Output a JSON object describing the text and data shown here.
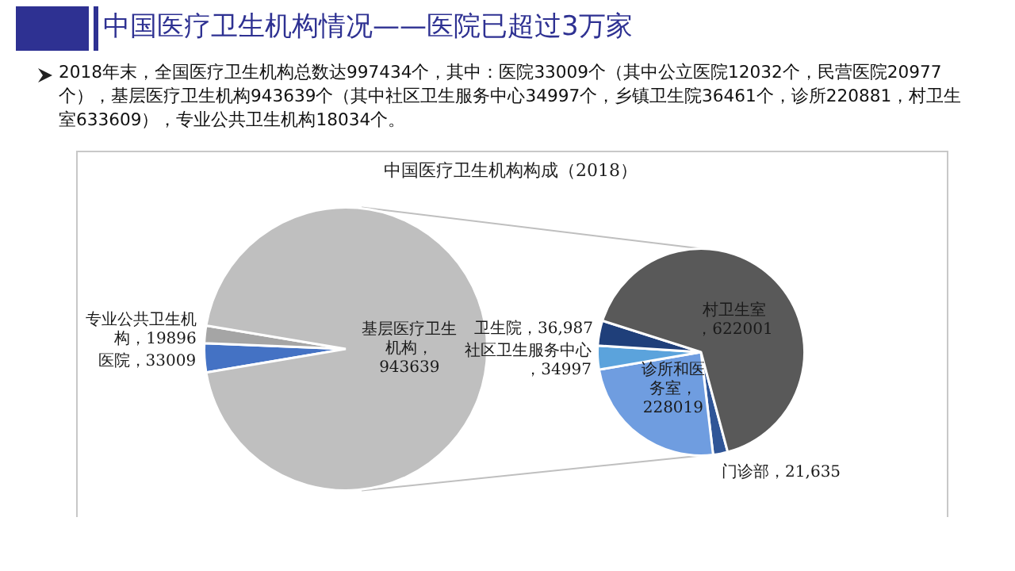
{
  "chart_data": [
    {
      "type": "pie",
      "title": "中国医疗卫生机构情况——医院已超过3万家",
      "subtitle": "中国医疗卫生机构构成（2018）",
      "annotations": [
        "2018年末，全国医疗卫生机构总数达997434个，其中：医院33009个（其中公立医院12032个，民营医院20977个），基层医疗卫生机构943639个（其中社区卫生服务中心34997个，乡镇卫生院36461个，诊所220881，村卫生室633609），专业公共卫生机构18034个。"
      ],
      "categories": [
        "医院",
        "专业公共卫生机构",
        "基层医疗卫生机构"
      ],
      "values": [
        33009,
        19896,
        943639
      ],
      "colors": [
        "#4472c4",
        "#a5a5a5",
        "#bfbfbf"
      ],
      "value_labels": [
        "，33009",
        "，19896",
        "，943639"
      ]
    },
    {
      "type": "pie",
      "categories": [
        "门诊部",
        "诊所和医务室",
        "社区卫生服务中心",
        "卫生院",
        "村卫生室"
      ],
      "values": [
        21635,
        228019,
        34997,
        36987,
        622001
      ],
      "colors": [
        "#2f5597",
        "#6f9de0",
        "#5ba3dc",
        "#1f3f7a",
        "#595959"
      ],
      "value_labels": [
        "，21,635",
        "，228019",
        "，34997",
        "，36,987",
        "，622001"
      ]
    }
  ]
}
